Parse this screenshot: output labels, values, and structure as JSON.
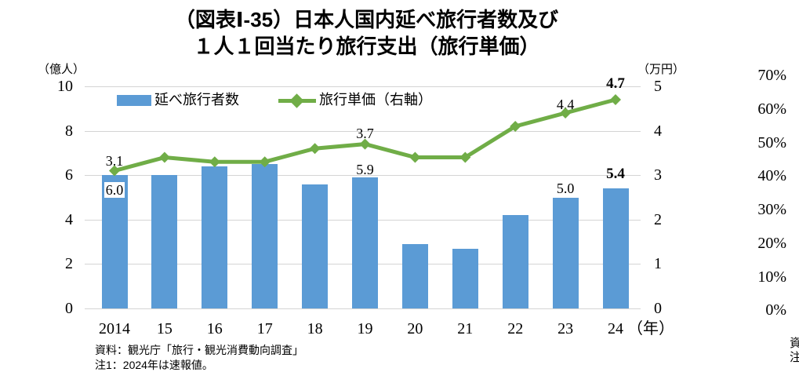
{
  "title": {
    "line1": "（図表Ⅰ-35）日本人国内延べ旅行者数及び",
    "line2": "１人１回当たり旅行支出（旅行単価）"
  },
  "legend": [
    {
      "label": "延べ旅行者数",
      "swatch": "bar-swatch",
      "color": "#5B9BD5"
    },
    {
      "label": "旅行単価（右軸）",
      "swatch": "line-swatch",
      "color": "#70AD47"
    }
  ],
  "axes": {
    "left_unit": "（億人）",
    "right_unit": "（万円）",
    "left_ticks": [
      "10",
      "8",
      "6",
      "4",
      "2",
      "0"
    ],
    "right_ticks": [
      "5",
      "4",
      "3",
      "2",
      "1",
      "0"
    ],
    "x_ticks": [
      "2014",
      "15",
      "16",
      "17",
      "18",
      "19",
      "20",
      "21",
      "22",
      "23",
      "24"
    ],
    "x_unit": "（年）"
  },
  "chart_data": {
    "type": "bar+line",
    "title": "（図表Ⅰ-35）日本人国内延べ旅行者数及び１人１回当たり旅行支出（旅行単価）",
    "categories": [
      2014,
      2015,
      2016,
      2017,
      2018,
      2019,
      2020,
      2021,
      2022,
      2023,
      2024
    ],
    "series": [
      {
        "name": "延べ旅行者数",
        "type": "bar",
        "axis": "left",
        "unit": "億人",
        "color": "#5B9BD5",
        "values": [
          6.0,
          6.0,
          6.4,
          6.5,
          5.6,
          5.9,
          2.9,
          2.7,
          4.2,
          5.0,
          5.4
        ],
        "labels": [
          "6.0",
          null,
          null,
          null,
          null,
          "5.9",
          null,
          null,
          null,
          "5.0",
          "5.4"
        ]
      },
      {
        "name": "旅行単価（右軸）",
        "type": "line",
        "axis": "right",
        "unit": "万円",
        "color": "#70AD47",
        "values": [
          3.1,
          3.4,
          3.3,
          3.3,
          3.6,
          3.7,
          3.4,
          3.4,
          4.1,
          4.4,
          4.7
        ],
        "labels": [
          "3.1",
          null,
          null,
          null,
          null,
          "3.7",
          null,
          null,
          null,
          "4.4",
          "4.7"
        ]
      }
    ],
    "left_axis": {
      "label": "（億人）",
      "range": [
        0,
        10
      ],
      "ticks": [
        0,
        2,
        4,
        6,
        8,
        10
      ]
    },
    "right_axis": {
      "label": "（万円）",
      "range": [
        0,
        5
      ],
      "ticks": [
        0,
        1,
        2,
        3,
        4,
        5
      ]
    },
    "grid": true,
    "legend_position": "top",
    "emphasis_last_labels": true
  },
  "footnotes": [
    "資料：観光庁「旅行・観光消費動向調査」",
    "注1：2024年は速報値。"
  ],
  "adjacent_chart_axis": {
    "ticks": [
      "70%",
      "60%",
      "50%",
      "40%",
      "30%",
      "20%",
      "10%",
      "0%"
    ]
  },
  "edge_fragments": [
    "資",
    "注"
  ],
  "colors": {
    "bar": "#5B9BD5",
    "line": "#70AD47",
    "grid": "#d4d4d4",
    "text": "#000000",
    "background": "#ffffff"
  }
}
